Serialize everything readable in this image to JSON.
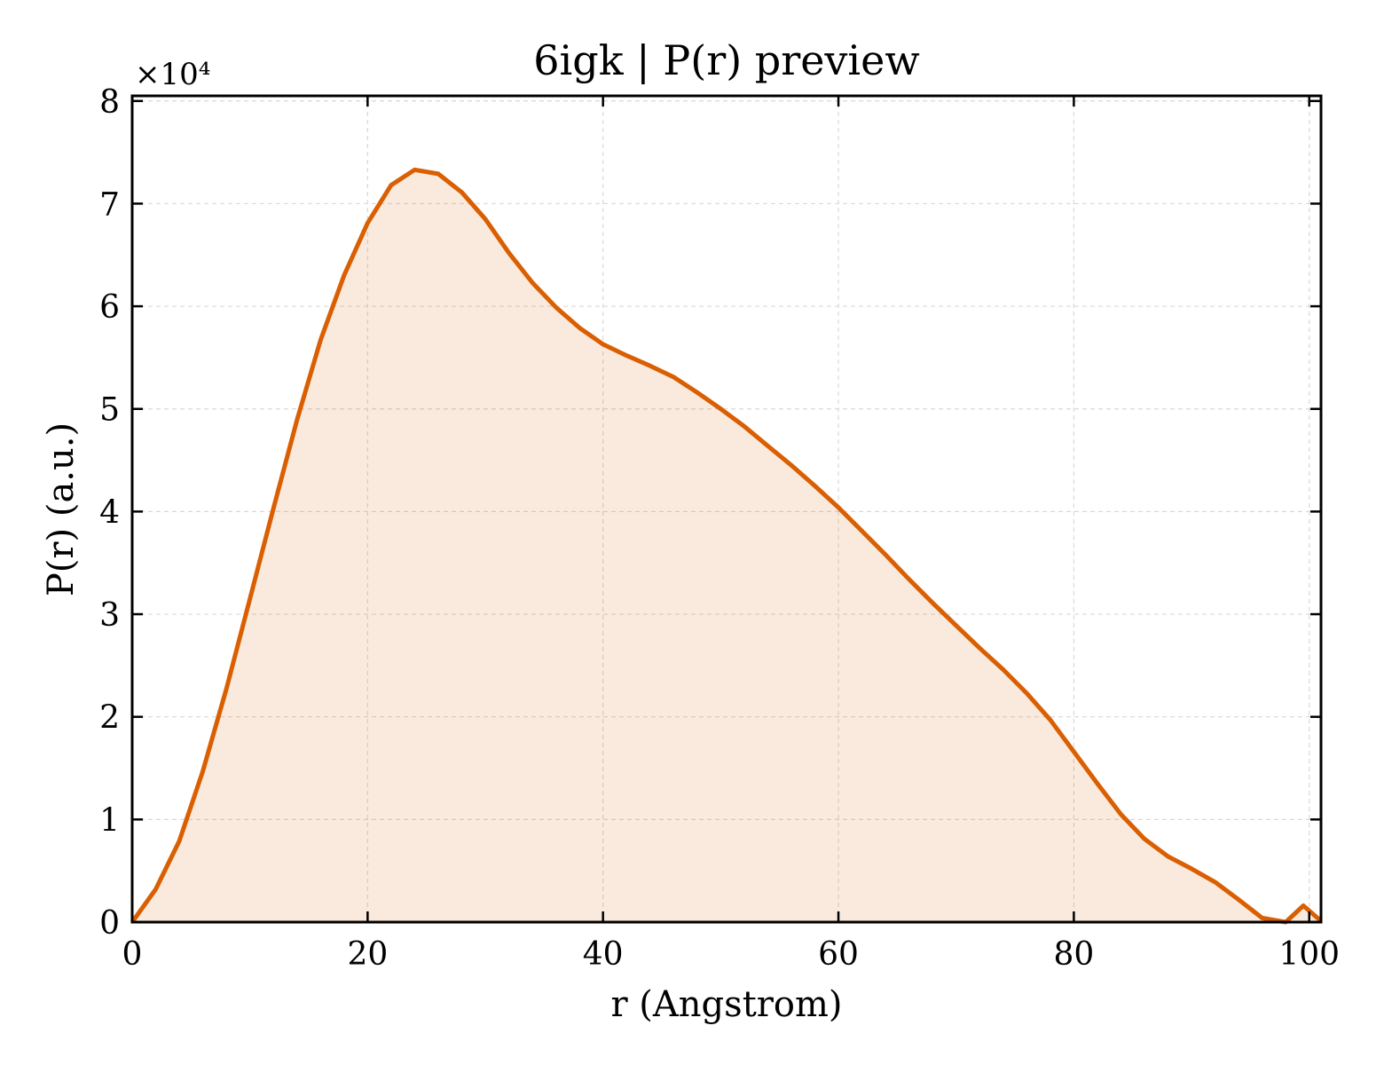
{
  "chart_data": {
    "type": "area",
    "title": "6igk | P(r) preview",
    "xlabel": "r (Angstrom)",
    "ylabel": "P(r) (a.u.)",
    "y_offset_label": "×10⁴",
    "xlim": [
      0,
      101
    ],
    "ylim": [
      0,
      80500
    ],
    "x_ticks": [
      0,
      20,
      40,
      60,
      80,
      100
    ],
    "x_tick_labels": [
      "0",
      "20",
      "40",
      "60",
      "80",
      "100"
    ],
    "y_ticks": [
      0,
      10000,
      20000,
      30000,
      40000,
      50000,
      60000,
      70000,
      80000
    ],
    "y_tick_labels": [
      "0",
      "1",
      "2",
      "3",
      "4",
      "5",
      "6",
      "7",
      "8"
    ],
    "grid": true,
    "line_color": "#d95f02",
    "fill_color": "#d95f02",
    "fill_opacity": 0.13,
    "series": [
      {
        "x": [
          0,
          2,
          4,
          6,
          8,
          10,
          12,
          14,
          16,
          18,
          20,
          22,
          24,
          26,
          28,
          30,
          32,
          34,
          36,
          38,
          40,
          42,
          44,
          46,
          48,
          50,
          52,
          54,
          56,
          58,
          60,
          62,
          64,
          66,
          68,
          70,
          72,
          74,
          76,
          78,
          80,
          82,
          84,
          86,
          88,
          90,
          92,
          94,
          96,
          98,
          99.5,
          101
        ],
        "y": [
          0,
          3200,
          7900,
          14700,
          22700,
          31500,
          40300,
          48900,
          56700,
          63000,
          68100,
          71800,
          73300,
          72900,
          71100,
          68500,
          65200,
          62300,
          59900,
          57900,
          56300,
          55200,
          54200,
          53100,
          51600,
          50000,
          48300,
          46400,
          44500,
          42500,
          40400,
          38100,
          35800,
          33400,
          31100,
          28900,
          26700,
          24600,
          22300,
          19700,
          16600,
          13500,
          10500,
          8100,
          6400,
          5200,
          3900,
          2200,
          400,
          0,
          1600,
          100
        ]
      }
    ]
  }
}
